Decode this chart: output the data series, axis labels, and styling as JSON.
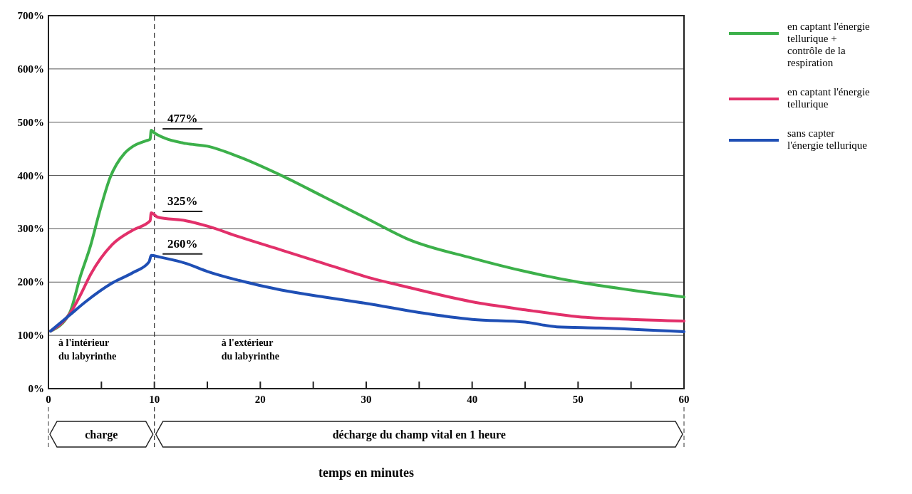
{
  "chart_data": {
    "type": "line",
    "xlabel": "temps en minutes",
    "xlim": [
      0,
      60
    ],
    "xticks": [
      0,
      {
        "value": 5,
        "label": null
      },
      10,
      {
        "value": 15,
        "label": null
      },
      20,
      {
        "value": 25,
        "label": null
      },
      30,
      {
        "value": 35,
        "label": null
      },
      40,
      {
        "value": 45,
        "label": null
      },
      50,
      {
        "value": 55,
        "label": null
      },
      60
    ],
    "ylim": [
      0,
      700
    ],
    "yticks": [
      {
        "value": 0,
        "label": "0%"
      },
      {
        "value": 100,
        "label": "100%"
      },
      {
        "value": 200,
        "label": "200%"
      },
      {
        "value": 300,
        "label": "300%"
      },
      {
        "value": 400,
        "label": "400%"
      },
      {
        "value": 500,
        "label": "500%"
      },
      {
        "value": 600,
        "label": "600%"
      },
      {
        "value": 700,
        "label": "700%"
      }
    ],
    "grid": "y",
    "legend": "top right",
    "marker": "none",
    "line_style": "solid",
    "series": [
      {
        "name": "en captant l'énergie tellurique + contrôle de la respiration",
        "color": "#3cb04a",
        "x": [
          0.2,
          2,
          3,
          4,
          4.8,
          5.8,
          7.2,
          8,
          9.2,
          9.6,
          9.7,
          10,
          11,
          13,
          15,
          18,
          22,
          26,
          30,
          34,
          40,
          45,
          50,
          55,
          60
        ],
        "values": [
          108,
          142,
          210,
          270,
          330,
          395,
          442,
          455,
          465,
          468,
          485,
          480,
          470,
          460,
          455,
          435,
          400,
          360,
          320,
          280,
          245,
          220,
          200,
          185,
          172
        ]
      },
      {
        "name": "en captant l'énergie tellurique",
        "color": "#e2306a",
        "x": [
          0.2,
          2,
          3,
          4,
          6,
          8,
          9.6,
          9.7,
          10.3,
          13,
          15,
          18,
          22,
          26,
          30,
          34,
          40,
          45,
          50,
          55,
          60
        ],
        "values": [
          108,
          140,
          175,
          215,
          270,
          298,
          315,
          330,
          322,
          315,
          305,
          285,
          260,
          235,
          210,
          190,
          163,
          148,
          135,
          130,
          127
        ]
      },
      {
        "name": "sans capter l'énergie tellurique",
        "color": "#1f4fb5",
        "x": [
          0.2,
          2,
          3.5,
          6,
          8,
          9.5,
          9.7,
          10.5,
          13,
          15,
          18,
          22,
          26,
          30,
          35,
          40,
          45,
          48,
          52,
          60
        ],
        "values": [
          108,
          138,
          163,
          198,
          218,
          238,
          250,
          247,
          235,
          220,
          203,
          185,
          172,
          160,
          143,
          130,
          125,
          116,
          114,
          107
        ]
      }
    ],
    "ref_lines": [
      {
        "axis": "x",
        "value": 10,
        "line_style": "dashed",
        "color": "#333333"
      }
    ],
    "annotations": [
      "477%",
      "325%",
      "260%",
      "à l'intérieur du labyrinthe",
      "à l'extérieur du labyrinthe",
      "charge",
      "décharge du champ vital en 1 heure"
    ]
  }
}
